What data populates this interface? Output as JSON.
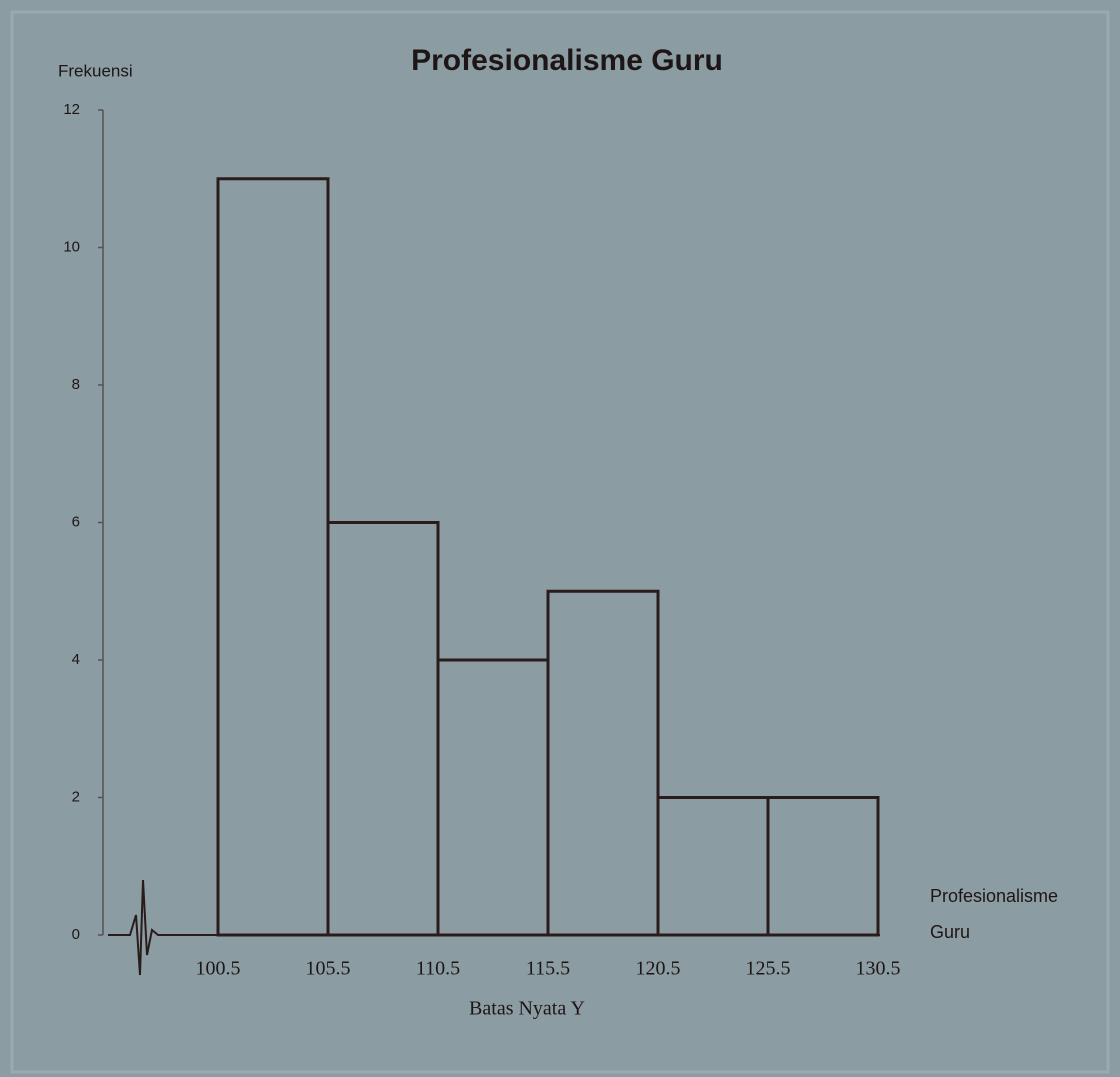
{
  "chart_data": {
    "type": "histogram",
    "title": "Profesionalisme Guru",
    "y_label": "Frekuensi",
    "x_label": "Batas Nyata Y",
    "x_end_label": [
      "Profesionalisme",
      "Guru"
    ],
    "bins": [
      100.5,
      105.5,
      110.5,
      115.5,
      120.5,
      125.5,
      130.5
    ],
    "values": [
      11,
      6,
      4,
      5,
      2,
      2
    ],
    "xlim": [
      95.5,
      130.5
    ],
    "xticks": [
      100.5,
      105.5,
      110.5,
      115.5,
      120.5,
      125.5,
      130.5
    ],
    "ylim": [
      0,
      12
    ],
    "yticks": [
      0,
      2,
      4,
      6,
      8,
      10,
      12
    ],
    "color": "#2b1c1c",
    "grid": false
  }
}
